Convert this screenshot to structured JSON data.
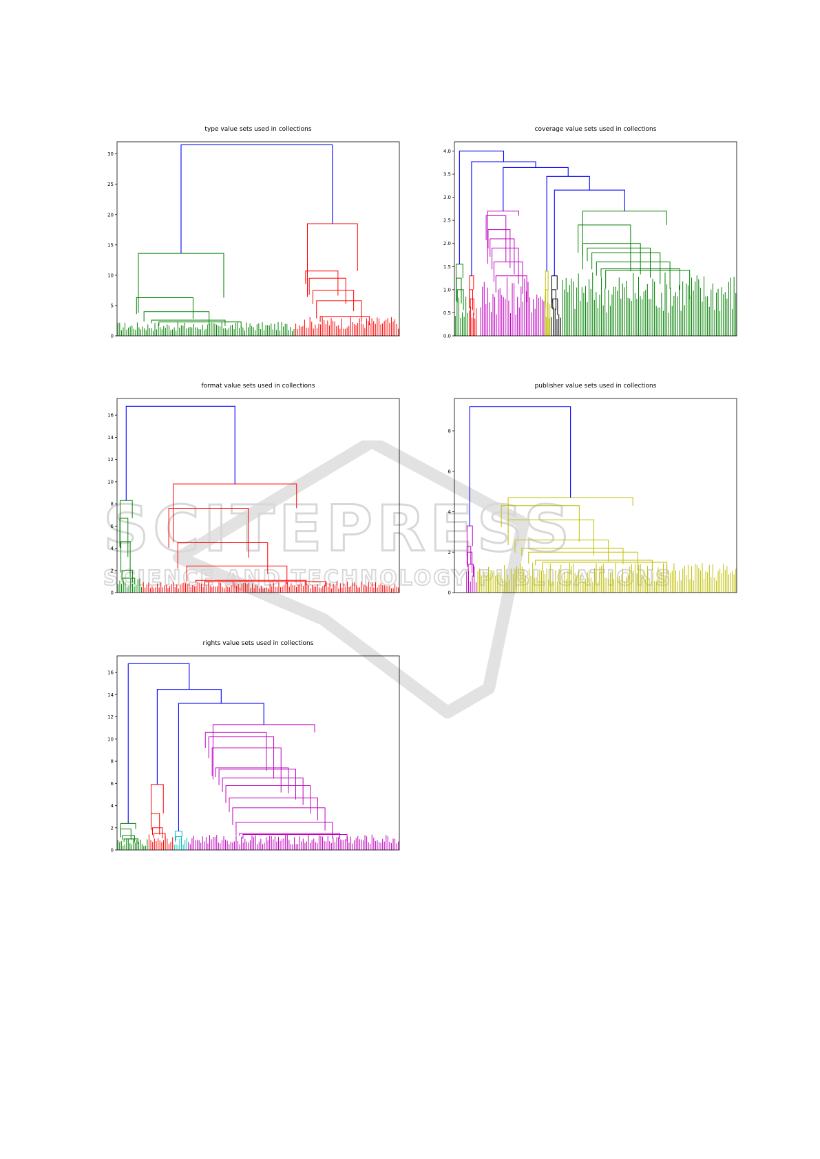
{
  "watermark": {
    "line1": "SCITEPRESS",
    "line2": "SCIENCE AND TECHNOLOGY PUBLICATIONS"
  },
  "chart_data": [
    {
      "type": "dendrogram",
      "title": "type value sets used in collections",
      "ylim": [
        0,
        32
      ],
      "yticks": [
        0,
        5,
        10,
        15,
        20,
        25,
        30
      ],
      "ytick_labels": [
        "0",
        "5",
        "10",
        "15",
        "20",
        "25",
        "30"
      ],
      "root_height": 31.5,
      "clusters": [
        {
          "color": "#008000",
          "merge_height": 13.6,
          "x_range": [
            0,
            0.63
          ],
          "sub_heights": [
            6.3,
            4.0,
            2.6,
            2.3
          ]
        },
        {
          "color": "#ff0000",
          "merge_height": 18.5,
          "x_range": [
            0.63,
            1.0
          ],
          "sub_heights": [
            10.7,
            9.5,
            7.5,
            5.8,
            3.2
          ]
        }
      ],
      "link_color_above_threshold": "#0000ff"
    },
    {
      "type": "dendrogram",
      "title": "coverage value sets used in collections",
      "ylim": [
        0,
        4.2
      ],
      "yticks": [
        0.0,
        0.5,
        1.0,
        1.5,
        2.0,
        2.5,
        3.0,
        3.5,
        4.0
      ],
      "ytick_labels": [
        "0.0",
        "0.5",
        "1.0",
        "1.5",
        "2.0",
        "2.5",
        "3.0",
        "3.5",
        "4.0"
      ],
      "root_height": 4.0,
      "clusters": [
        {
          "color": "#008000",
          "merge_height": 1.55,
          "x_range": [
            0,
            0.05
          ],
          "sub_heights": [
            1.25,
            1.0
          ]
        },
        {
          "color": "#ff0000",
          "merge_height": 1.3,
          "x_range": [
            0.05,
            0.08
          ],
          "sub_heights": [
            1.0,
            0.8
          ]
        },
        {
          "color": "#bf00bf",
          "merge_height": 2.7,
          "x_range": [
            0.09,
            0.32
          ],
          "sub_heights": [
            2.6,
            2.3,
            2.1,
            1.9,
            1.6,
            1.3
          ]
        },
        {
          "color": "#bfbf00",
          "merge_height": 1.4,
          "x_range": [
            0.32,
            0.34
          ],
          "sub_heights": [
            1.0
          ]
        },
        {
          "color": "#000000",
          "merge_height": 1.3,
          "x_range": [
            0.34,
            0.38
          ],
          "sub_heights": [
            1.0,
            0.8
          ]
        },
        {
          "color": "#008000",
          "merge_height": 2.7,
          "x_range": [
            0.38,
            1.0
          ],
          "sub_heights": [
            2.4,
            2.0,
            1.9,
            1.8,
            1.6,
            1.45,
            1.42
          ]
        }
      ],
      "link_color_above_threshold": "#0000ff"
    },
    {
      "type": "dendrogram",
      "title": "format value sets used in collections",
      "ylim": [
        0,
        17.5
      ],
      "yticks": [
        0,
        2,
        4,
        6,
        8,
        10,
        12,
        14,
        16
      ],
      "ytick_labels": [
        "0",
        "2",
        "4",
        "6",
        "8",
        "10",
        "12",
        "14",
        "16"
      ],
      "root_height": 16.8,
      "clusters": [
        {
          "color": "#008000",
          "merge_height": 8.3,
          "x_range": [
            0,
            0.09
          ],
          "sub_heights": [
            6.7,
            4.6,
            2.0,
            1.3
          ]
        },
        {
          "color": "#ff0000",
          "merge_height": 9.8,
          "x_range": [
            0.09,
            1.0
          ],
          "sub_heights": [
            7.6,
            4.5,
            2.4,
            1.1,
            1.0
          ]
        }
      ],
      "link_color_above_threshold": "#0000ff"
    },
    {
      "type": "dendrogram",
      "title": "publisher value sets used in collections",
      "ylim": [
        0,
        9.6
      ],
      "yticks": [
        0,
        2,
        4,
        6,
        8
      ],
      "ytick_labels": [
        "0",
        "2",
        "4",
        "6",
        "8"
      ],
      "root_height": 9.2,
      "clusters": [
        {
          "color": "#bf00bf",
          "merge_height": 3.3,
          "x_range": [
            0.04,
            0.08
          ],
          "sub_heights": [
            2.3,
            2.0,
            1.4
          ]
        },
        {
          "color": "#bfbf00",
          "merge_height": 4.7,
          "x_range": [
            0.08,
            1.0
          ],
          "sub_heights": [
            4.3,
            3.6,
            2.6,
            2.2,
            2.0,
            1.6,
            1.5
          ]
        }
      ],
      "link_color_above_threshold": "#0000ff"
    },
    {
      "type": "dendrogram",
      "title": "rights value sets used in collections",
      "ylim": [
        0,
        17.5
      ],
      "yticks": [
        0,
        2,
        4,
        6,
        8,
        10,
        12,
        14,
        16
      ],
      "ytick_labels": [
        "0",
        "2",
        "4",
        "6",
        "8",
        "10",
        "12",
        "14",
        "16"
      ],
      "root_height": 16.8,
      "clusters": [
        {
          "color": "#008000",
          "merge_height": 2.4,
          "x_range": [
            0,
            0.11
          ],
          "sub_heights": [
            1.9,
            1.3,
            1.0
          ]
        },
        {
          "color": "#ff0000",
          "merge_height": 5.9,
          "x_range": [
            0.11,
            0.2
          ],
          "sub_heights": [
            3.3,
            2.0,
            1.5
          ]
        },
        {
          "color": "#00bfbf",
          "merge_height": 1.7,
          "x_range": [
            0.2,
            0.25
          ],
          "sub_heights": [
            1.2
          ]
        },
        {
          "color": "#bf00bf",
          "merge_height": 11.3,
          "x_range": [
            0.25,
            1.0
          ],
          "sub_heights": [
            10.6,
            10.2,
            9.2,
            7.4,
            7.3,
            6.5,
            5.8,
            4.7,
            3.8,
            2.5,
            1.5,
            1.4
          ]
        }
      ],
      "link_color_above_threshold": "#0000ff"
    }
  ]
}
